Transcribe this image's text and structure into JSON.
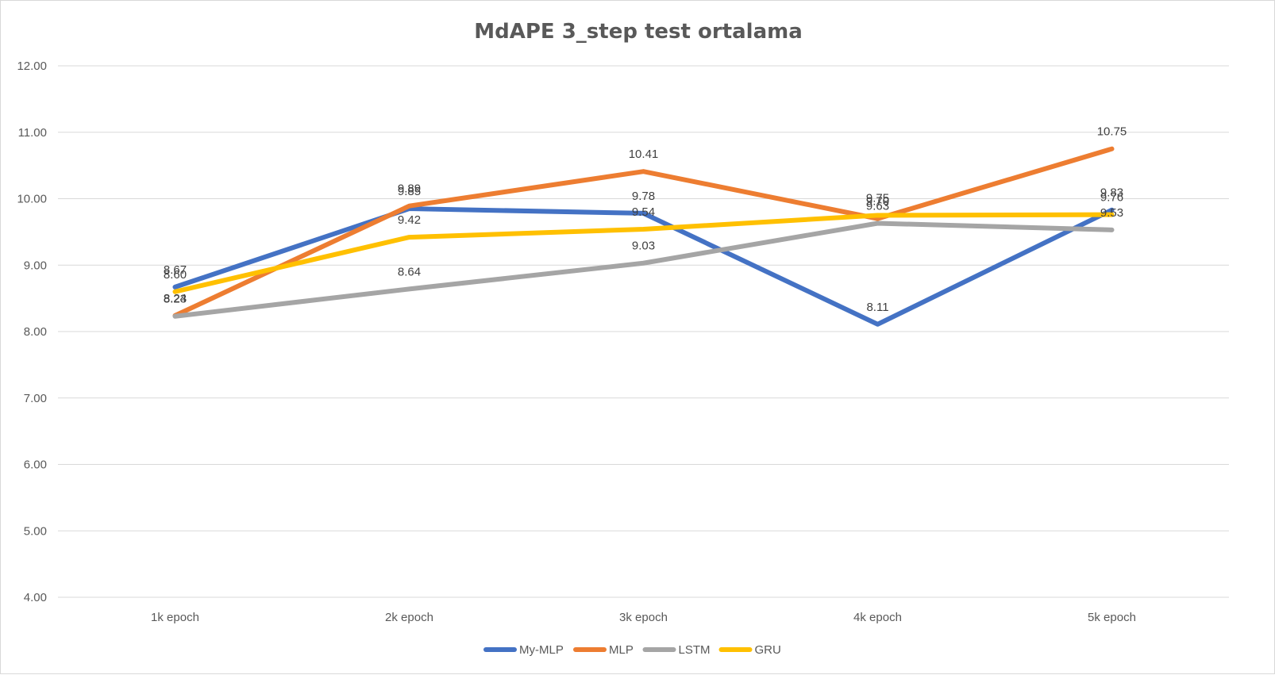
{
  "chart_data": {
    "type": "line",
    "title": "MdAPE 3_step test ortalama",
    "xlabel": "",
    "ylabel": "",
    "categories": [
      "1k epoch",
      "2k epoch",
      "3k epoch",
      "4k epoch",
      "5k epoch"
    ],
    "ylim": [
      4.0,
      12.0
    ],
    "ytick_step": 1.0,
    "ytick_labels": [
      "4.00",
      "5.00",
      "6.00",
      "7.00",
      "8.00",
      "9.00",
      "10.00",
      "11.00",
      "12.00"
    ],
    "grid": true,
    "legend_position": "bottom",
    "series": [
      {
        "name": "My-MLP",
        "color": "#4472C4",
        "values": [
          8.67,
          9.85,
          9.78,
          8.11,
          9.83
        ]
      },
      {
        "name": "MLP",
        "color": "#ED7D31",
        "values": [
          8.24,
          9.89,
          10.41,
          9.7,
          10.75
        ]
      },
      {
        "name": "LSTM",
        "color": "#A5A5A5",
        "values": [
          8.23,
          8.64,
          9.03,
          9.63,
          9.53
        ]
      },
      {
        "name": "GRU",
        "color": "#FFC000",
        "values": [
          8.6,
          9.42,
          9.54,
          9.75,
          9.76
        ]
      }
    ]
  }
}
